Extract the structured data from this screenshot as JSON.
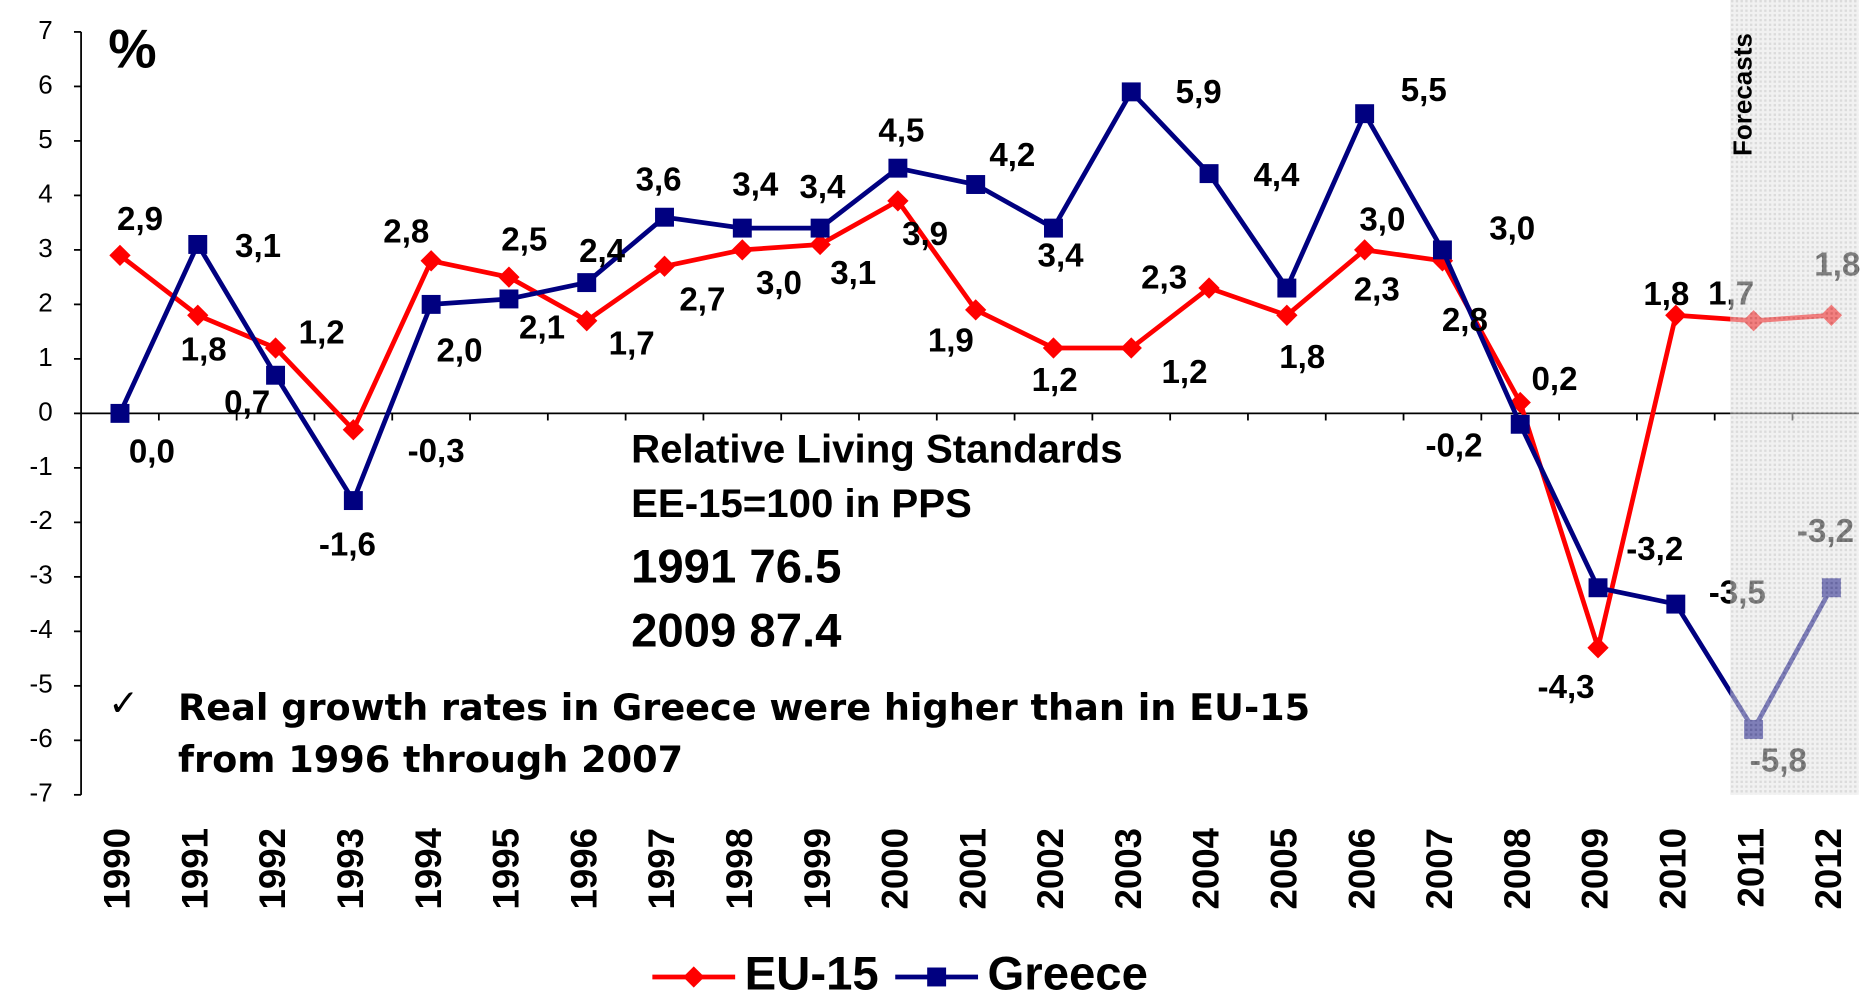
{
  "chart_data": {
    "type": "line",
    "title": "%",
    "categories": [
      "1990",
      "1991",
      "1992",
      "1993",
      "1994",
      "1995",
      "1996",
      "1997",
      "1998",
      "1999",
      "2000",
      "2001",
      "2002",
      "2003",
      "2004",
      "2005",
      "2006",
      "2007",
      "2008",
      "2009",
      "2010",
      "2011",
      "2012"
    ],
    "series": [
      {
        "name": "EU-15",
        "color": "#ff0000",
        "marker": "diamond",
        "values": [
          2.9,
          1.8,
          1.2,
          -0.3,
          2.8,
          2.5,
          1.7,
          2.7,
          3.0,
          3.1,
          3.9,
          1.9,
          1.2,
          1.2,
          2.3,
          1.8,
          3.0,
          2.8,
          0.2,
          -4.3,
          1.8,
          1.7,
          1.8
        ],
        "value_labels": [
          "2,9",
          "1,8",
          "1,2",
          "-0,3",
          "2,8",
          "2,5",
          "1,7",
          "2,7",
          "3,0",
          "3,1",
          "3,9",
          "1,9",
          "1,2",
          "1,2",
          "2,3",
          "1,8",
          "3,0",
          "2,8",
          "0,2",
          "-4,3",
          "1,8",
          "1,7",
          "1,8"
        ]
      },
      {
        "name": "Greece",
        "color": "#000080",
        "marker": "square",
        "values": [
          0.0,
          3.1,
          0.7,
          -1.6,
          2.0,
          2.1,
          2.4,
          3.6,
          3.4,
          3.4,
          4.5,
          4.2,
          3.4,
          5.9,
          4.4,
          2.3,
          5.5,
          3.0,
          -0.2,
          -3.2,
          -3.5,
          -5.8,
          -3.2
        ],
        "value_labels": [
          "0,0",
          "3,1",
          "0,7",
          "-1,6",
          "2,0",
          "2,1",
          "2,4",
          "3,6",
          "3,4",
          "3,4",
          "4,5",
          "4,2",
          "3,4",
          "5,9",
          "4,4",
          "2,3",
          "5,5",
          "3,0",
          "-0,2",
          "-3,2",
          "-3,5",
          "-5,8",
          "-3,2"
        ]
      }
    ],
    "ylim": [
      -7,
      7
    ],
    "yticks": [
      -7,
      -6,
      -5,
      -4,
      -3,
      -2,
      -1,
      0,
      1,
      2,
      3,
      4,
      5,
      6,
      7
    ],
    "grid": false,
    "legend": "bottom",
    "forecast": {
      "label": "Forecasts",
      "categories": [
        "2011",
        "2012"
      ]
    },
    "annotations": [
      "Relative Living Standards",
      "EE-15=100 in PPS",
      "1991  76.5",
      "2009  87.4"
    ],
    "note": {
      "bullet": "✓",
      "lines": [
        "Real growth rates in Greece were higher than in EU-15",
        "from 1996 through 2007"
      ]
    }
  }
}
